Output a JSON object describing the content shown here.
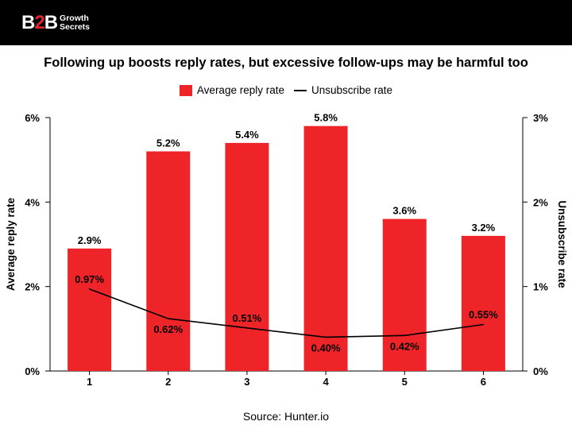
{
  "header": {
    "logo_b2b_prefix": "B",
    "logo_b2b_two": "2",
    "logo_b2b_suffix": "B",
    "logo_line1": "Growth",
    "logo_line2": "Secrets"
  },
  "source": "Source: Hunter.io",
  "colors": {
    "bar": "#ee2428",
    "line": "#000000",
    "header_bg": "#000000",
    "brand_accent": "#e8232b"
  },
  "chart_data": {
    "type": "bar+line",
    "title": "Following up boosts reply rates, but excessive follow-ups may be harmful too",
    "categories": [
      "1",
      "2",
      "3",
      "4",
      "5",
      "6"
    ],
    "series": [
      {
        "name": "Average reply rate",
        "type": "bar",
        "axis": "left",
        "values": [
          2.9,
          5.2,
          5.4,
          5.8,
          3.6,
          3.2
        ],
        "labels": [
          "2.9%",
          "5.2%",
          "5.4%",
          "5.8%",
          "3.6%",
          "3.2%"
        ]
      },
      {
        "name": "Unsubscribe rate",
        "type": "line",
        "axis": "right",
        "values": [
          0.97,
          0.62,
          0.51,
          0.4,
          0.42,
          0.55
        ],
        "labels": [
          "0.97%",
          "0.62%",
          "0.51%",
          "0.40%",
          "0.42%",
          "0.55%"
        ]
      }
    ],
    "y_left": {
      "label": "Average reply rate",
      "lim": [
        0,
        6
      ],
      "ticks": [
        0,
        2,
        4,
        6
      ],
      "tick_labels": [
        "0%",
        "2%",
        "4%",
        "6%"
      ]
    },
    "y_right": {
      "label": "Unsubscribe rate",
      "lim": [
        0,
        3
      ],
      "ticks": [
        0,
        1,
        2,
        3
      ],
      "tick_labels": [
        "0%",
        "1%",
        "2%",
        "3%"
      ]
    },
    "legend": {
      "position": "top-center"
    },
    "grid": false
  }
}
